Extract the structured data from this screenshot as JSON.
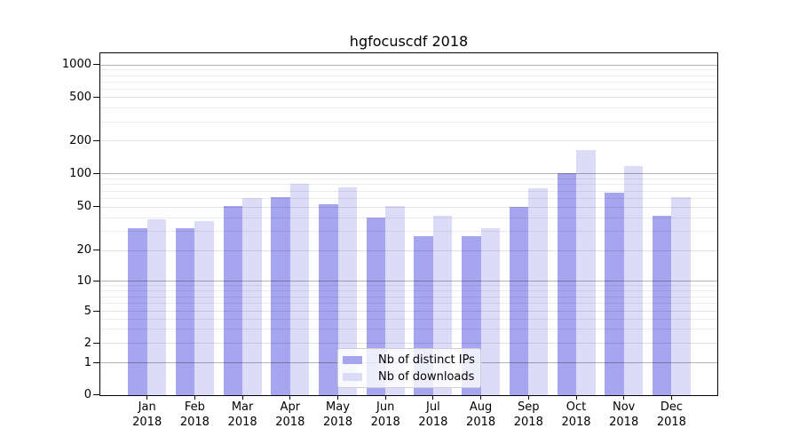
{
  "chart_data": {
    "type": "bar",
    "title": "hgfocuscdf 2018",
    "x_axis": {
      "months": [
        "Jan",
        "Feb",
        "Mar",
        "Apr",
        "May",
        "Jun",
        "Jul",
        "Aug",
        "Sep",
        "Oct",
        "Nov",
        "Dec"
      ],
      "year": "2018"
    },
    "y_axis": {
      "scale": "log-like",
      "ticks": [
        0,
        1,
        2,
        5,
        10,
        20,
        50,
        100,
        200,
        500,
        1000
      ]
    },
    "series": [
      {
        "name": "Nb of distinct IPs",
        "color": "#a5a5f0",
        "values": [
          32,
          32,
          51,
          61,
          53,
          40,
          27,
          27,
          50,
          100,
          67,
          41
        ]
      },
      {
        "name": "Nb of downloads",
        "color": "#dcdcf8",
        "values": [
          38,
          37,
          60,
          80,
          75,
          51,
          41,
          32,
          73,
          165,
          117,
          61
        ]
      }
    ],
    "legend": {
      "position": "lower center",
      "entries": [
        "Nb of distinct IPs",
        "Nb of downloads"
      ]
    },
    "grid": {
      "major_color": "#b3b3b3",
      "minor_color": "#ebebeb"
    }
  }
}
